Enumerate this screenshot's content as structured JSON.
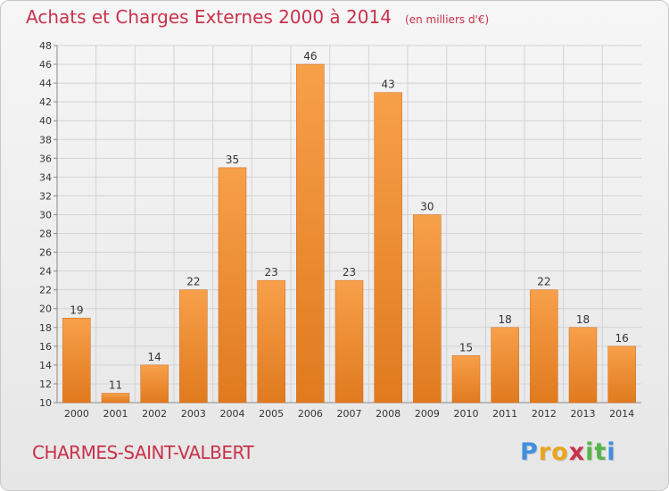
{
  "header": {
    "title": "Achats et Charges Externes 2000 à 2014",
    "unit": "(en milliers d'€)"
  },
  "footer": {
    "commune": "CHARMES-SAINT-VALBERT",
    "logo_letters": [
      "P",
      "r",
      "o",
      "x",
      "i",
      "t",
      "i"
    ],
    "logo_colors": [
      "#3f8ee0",
      "#e9a51f",
      "#e9a51f",
      "#c8324a",
      "#55b548",
      "#55b548",
      "#3f8ee0"
    ]
  },
  "colors": {
    "bar_light": "#f7a04a",
    "bar_dark": "#e07a1e",
    "title": "#c8324a",
    "axis": "#888888",
    "grid": "#d2d2d2"
  },
  "chart_data": {
    "type": "bar",
    "categories": [
      "2000",
      "2001",
      "2002",
      "2003",
      "2004",
      "2005",
      "2006",
      "2007",
      "2008",
      "2009",
      "2010",
      "2011",
      "2012",
      "2013",
      "2014"
    ],
    "values": [
      19,
      11,
      14,
      22,
      35,
      23,
      46,
      23,
      43,
      30,
      15,
      18,
      22,
      18,
      16
    ],
    "title": "Achats et Charges Externes 2000 à 2014",
    "xlabel": "",
    "ylabel": "",
    "ylim": [
      10,
      48
    ],
    "yticks": [
      10,
      12,
      14,
      16,
      18,
      20,
      22,
      24,
      26,
      28,
      30,
      32,
      34,
      36,
      38,
      40,
      42,
      44,
      46,
      48
    ],
    "grid": true,
    "data_labels": true
  }
}
